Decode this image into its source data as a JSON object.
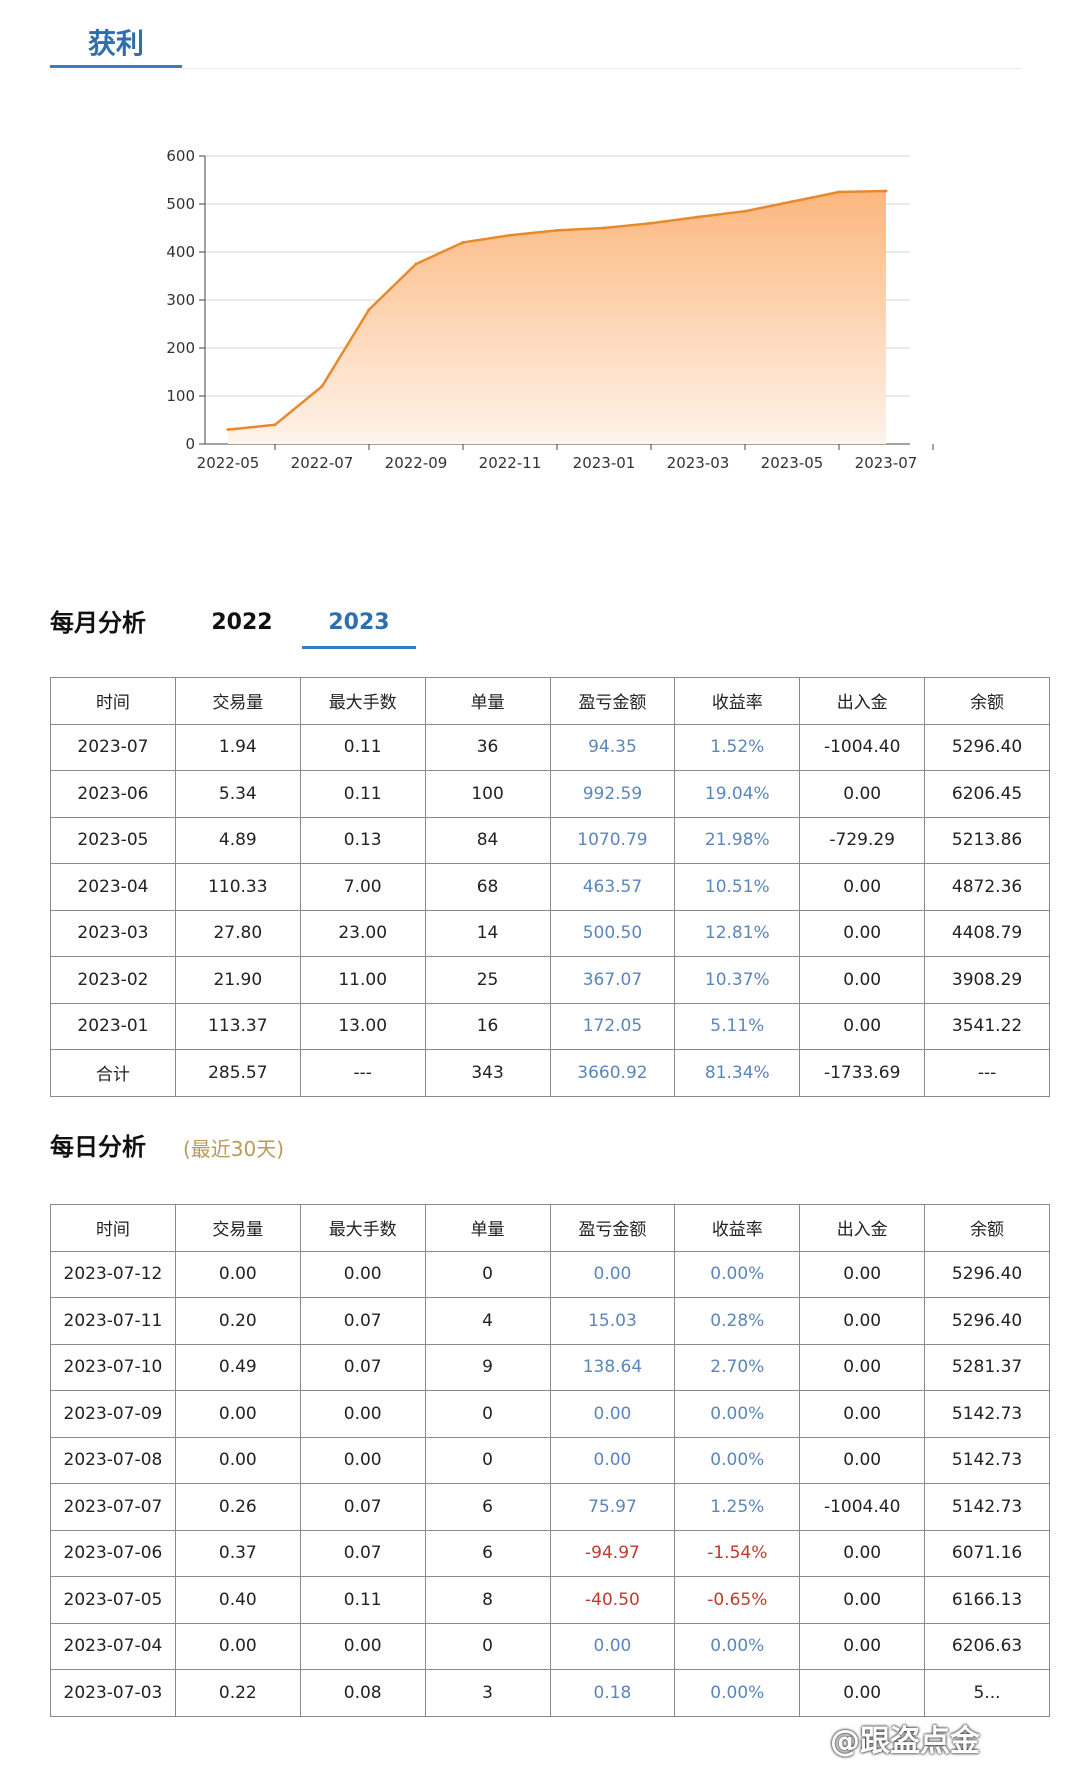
{
  "top_tab": {
    "label": "获利"
  },
  "chart_data": {
    "type": "area",
    "title": "",
    "xlabel": "",
    "ylabel": "",
    "x": [
      "2022-05",
      "2022-06",
      "2022-07",
      "2022-08",
      "2022-09",
      "2022-10",
      "2022-11",
      "2022-12",
      "2023-01",
      "2023-02",
      "2023-03",
      "2023-04",
      "2023-05",
      "2023-06",
      "2023-07"
    ],
    "values": [
      30,
      40,
      120,
      280,
      375,
      420,
      435,
      445,
      450,
      460,
      473,
      485,
      505,
      525,
      527
    ],
    "x_tick_labels": [
      "2022-05",
      "2022-07",
      "2022-09",
      "2022-11",
      "2023-01",
      "2023-03",
      "2023-05",
      "2023-07"
    ],
    "y_ticks": [
      0,
      100,
      200,
      300,
      400,
      500,
      600
    ],
    "ylim": [
      0,
      600
    ],
    "grid": true,
    "line_color": "#e8892d",
    "fill_color_top": "#fbb77e",
    "fill_color_bottom": "#fff3ea"
  },
  "monthly": {
    "title": "每月分析",
    "tabs": [
      {
        "label": "2022",
        "active": false
      },
      {
        "label": "2023",
        "active": true
      }
    ],
    "columns": [
      "时间",
      "交易量",
      "最大手数",
      "单量",
      "盈亏金额",
      "收益率",
      "出入金",
      "余额"
    ],
    "rows": [
      [
        "2023-07",
        "1.94",
        "0.11",
        "36",
        "94.35",
        "1.52%",
        "-1004.40",
        "5296.40"
      ],
      [
        "2023-06",
        "5.34",
        "0.11",
        "100",
        "992.59",
        "19.04%",
        "0.00",
        "6206.45"
      ],
      [
        "2023-05",
        "4.89",
        "0.13",
        "84",
        "1070.79",
        "21.98%",
        "-729.29",
        "5213.86"
      ],
      [
        "2023-04",
        "110.33",
        "7.00",
        "68",
        "463.57",
        "10.51%",
        "0.00",
        "4872.36"
      ],
      [
        "2023-03",
        "27.80",
        "23.00",
        "14",
        "500.50",
        "12.81%",
        "0.00",
        "4408.79"
      ],
      [
        "2023-02",
        "21.90",
        "11.00",
        "25",
        "367.07",
        "10.37%",
        "0.00",
        "3908.29"
      ],
      [
        "2023-01",
        "113.37",
        "13.00",
        "16",
        "172.05",
        "5.11%",
        "0.00",
        "3541.22"
      ],
      [
        "合计",
        "285.57",
        "---",
        "343",
        "3660.92",
        "81.34%",
        "-1733.69",
        "---"
      ]
    ]
  },
  "daily": {
    "title": "每日分析",
    "subtitle": "(最近30天)",
    "columns": [
      "时间",
      "交易量",
      "最大手数",
      "单量",
      "盈亏金额",
      "收益率",
      "出入金",
      "余额"
    ],
    "rows": [
      [
        "2023-07-12",
        "0.00",
        "0.00",
        "0",
        "0.00",
        "0.00%",
        "0.00",
        "5296.40"
      ],
      [
        "2023-07-11",
        "0.20",
        "0.07",
        "4",
        "15.03",
        "0.28%",
        "0.00",
        "5296.40"
      ],
      [
        "2023-07-10",
        "0.49",
        "0.07",
        "9",
        "138.64",
        "2.70%",
        "0.00",
        "5281.37"
      ],
      [
        "2023-07-09",
        "0.00",
        "0.00",
        "0",
        "0.00",
        "0.00%",
        "0.00",
        "5142.73"
      ],
      [
        "2023-07-08",
        "0.00",
        "0.00",
        "0",
        "0.00",
        "0.00%",
        "0.00",
        "5142.73"
      ],
      [
        "2023-07-07",
        "0.26",
        "0.07",
        "6",
        "75.97",
        "1.25%",
        "-1004.40",
        "5142.73"
      ],
      [
        "2023-07-06",
        "0.37",
        "0.07",
        "6",
        "-94.97",
        "-1.54%",
        "0.00",
        "6071.16"
      ],
      [
        "2023-07-05",
        "0.40",
        "0.11",
        "8",
        "-40.50",
        "-0.65%",
        "0.00",
        "6166.13"
      ],
      [
        "2023-07-04",
        "0.00",
        "0.00",
        "0",
        "0.00",
        "0.00%",
        "0.00",
        "6206.63"
      ],
      [
        "2023-07-03",
        "0.22",
        "0.08",
        "3",
        "0.18",
        "0.00%",
        "0.00",
        "5..."
      ]
    ]
  },
  "watermark": {
    "text": "@跟盗点金"
  },
  "colors": {
    "accent": "#3b7bbf",
    "positive": "#5b86bd",
    "negative": "#c0392b"
  }
}
